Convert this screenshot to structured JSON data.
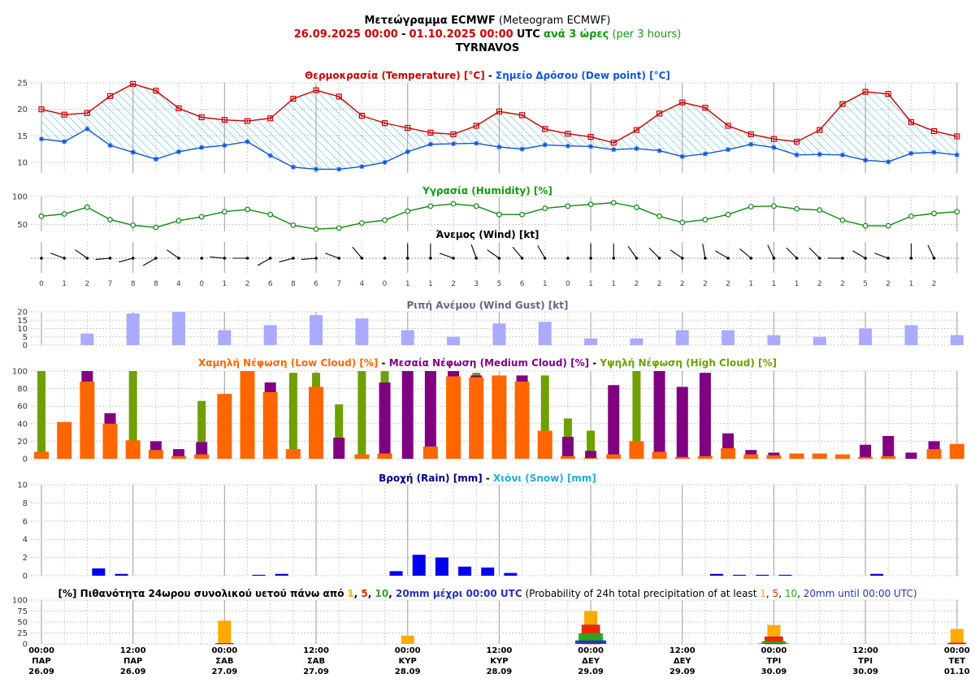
{
  "header": {
    "title_gr": "Μετεώγραμμα ECMWF",
    "title_en": "(Meteogram ECMWF)",
    "date_from": "26.09.2025 00:00",
    "dash": "-",
    "date_to": "01.10.2025 00:00",
    "utc": "UTC",
    "every_gr": "ανά 3 ώρες",
    "every_en": "(per 3 hours)",
    "location": "TYRNAVOS"
  },
  "titles": {
    "temp_gr": "Θερμοκρασία (Temperature) [°C]",
    "temp_sep": " - ",
    "dew_gr": "Σημείο Δρόσου (Dew point) [°C]",
    "humidity": "Υγρασία (Humidity) [%]",
    "wind": "Άνεμος (Wind) [kt]",
    "gust": "Ριπή Ανέμου (Wind Gust) [kt]",
    "low": "Χαμηλή Νέφωση (Low Cloud) [%]",
    "sep": " - ",
    "medium": "Μεσαία Νέφωση (Medium Cloud) [%]",
    "high": "Υψηλή Νέφωση (High Cloud) [%]",
    "rain": "Βροχή (Rain) [mm]",
    "snow": "Χιόνι (Snow) [mm]",
    "prob_a": "[%] Πιθανότητα 24ωρου συνολικού υετού πάνω από",
    "prob_b": "mm μέχρι 00:00 UTC",
    "prob_c": "(Probability of 24h total precipitation of at least",
    "prob_d": "mm until 00:00 UTC)",
    "t1": "1",
    "t5": "5",
    "t10": "10",
    "t20": "20",
    "comma": ", "
  },
  "colors": {
    "temperature": "#cc0000",
    "dewpoint": "#1155dd",
    "hatch": "#22aacc",
    "humidity": "#118811",
    "gust": "#aaaaff",
    "low_cloud": "#ff6600",
    "medium_cloud": "#7f0080",
    "high_cloud": "#6fa000",
    "rain": "#0000ee",
    "snow": "#22aadd",
    "prob_1": "#ffaa00",
    "prob_5": "#ee2200",
    "prob_10": "#22aa22",
    "prob_20": "#2233bb"
  },
  "x_axis": {
    "ticks": [
      {
        "time": "00:00",
        "day": "ΠΑΡ",
        "date": "26.09"
      },
      {
        "time": "12:00",
        "day": "ΠΑΡ",
        "date": "26.09"
      },
      {
        "time": "00:00",
        "day": "ΣΑΒ",
        "date": "27.09"
      },
      {
        "time": "12:00",
        "day": "ΣΑΒ",
        "date": "27.09"
      },
      {
        "time": "00:00",
        "day": "ΚΥΡ",
        "date": "28.09"
      },
      {
        "time": "12:00",
        "day": "ΚΥΡ",
        "date": "28.09"
      },
      {
        "time": "00:00",
        "day": "ΔΕΥ",
        "date": "29.09"
      },
      {
        "time": "12:00",
        "day": "ΔΕΥ",
        "date": "29.09"
      },
      {
        "time": "00:00",
        "day": "ΤΡΙ",
        "date": "30.09"
      },
      {
        "time": "12:00",
        "day": "ΤΡΙ",
        "date": "30.09"
      },
      {
        "time": "00:00",
        "day": "ΤΕΤ",
        "date": "01.10"
      }
    ]
  },
  "chart_data": [
    {
      "type": "line",
      "title": "Θερμοκρασία (Temperature) [°C] - Σημείο Δρόσου (Dew point) [°C]",
      "x_step_hours": 3,
      "ylim": [
        8,
        25
      ],
      "yticks": [
        10,
        15,
        20,
        25
      ],
      "series": [
        {
          "name": "Temperature",
          "values": [
            20.0,
            19.0,
            19.3,
            22.5,
            24.8,
            23.5,
            20.2,
            18.5,
            18.0,
            17.8,
            18.3,
            22.0,
            23.6,
            22.4,
            18.8,
            17.4,
            16.5,
            15.6,
            15.3,
            16.9,
            19.6,
            18.9,
            16.3,
            15.4,
            14.8,
            13.7,
            16.1,
            19.2,
            21.3,
            20.3,
            16.9,
            15.3,
            14.4,
            13.9,
            16.1,
            21.0,
            23.3,
            22.9,
            17.6,
            15.9,
            14.9
          ]
        },
        {
          "name": "Dew point",
          "values": [
            14.4,
            13.9,
            16.3,
            13.2,
            11.9,
            10.6,
            12.0,
            12.8,
            13.2,
            13.9,
            11.3,
            9.1,
            8.7,
            8.7,
            9.2,
            10.0,
            12.0,
            13.4,
            13.5,
            13.6,
            12.9,
            12.5,
            13.3,
            13.1,
            13.0,
            12.4,
            12.6,
            12.2,
            11.1,
            11.6,
            12.4,
            13.4,
            12.8,
            11.4,
            11.5,
            11.4,
            10.4,
            10.1,
            11.7,
            11.9,
            11.4
          ]
        }
      ]
    },
    {
      "type": "line",
      "title": "Υγρασία (Humidity) [%]",
      "ylim": [
        38,
        100
      ],
      "yticks": [
        50,
        100
      ],
      "series": [
        {
          "name": "Humidity",
          "values": [
            65,
            69,
            81,
            59,
            49,
            45,
            57,
            64,
            73,
            77,
            68,
            49,
            42,
            44,
            53,
            58,
            74,
            83,
            87,
            83,
            68,
            68,
            79,
            83,
            86,
            89,
            81,
            65,
            54,
            59,
            68,
            82,
            83,
            78,
            76,
            58,
            48,
            48,
            65,
            70,
            73
          ]
        }
      ]
    },
    {
      "type": "wind",
      "title": "Άνεμος (Wind) [kt]",
      "speed_kt": [
        0,
        1,
        2,
        7,
        8,
        8,
        4,
        0,
        1,
        2,
        6,
        8,
        6,
        7,
        4,
        0,
        1,
        1,
        2,
        3,
        5,
        6,
        1,
        0,
        1,
        1,
        2,
        2,
        2,
        2,
        2,
        1,
        1,
        1,
        2,
        2,
        5,
        2,
        1,
        2
      ],
      "direction_deg": [
        0,
        290,
        305,
        265,
        255,
        240,
        305,
        0,
        275,
        270,
        240,
        255,
        265,
        290,
        320,
        0,
        0,
        0,
        290,
        340,
        305,
        320,
        330,
        0,
        0,
        0,
        325,
        315,
        305,
        350,
        300,
        310,
        335,
        315,
        315,
        270,
        300,
        290,
        0,
        335
      ]
    },
    {
      "type": "bar",
      "title": "Ριπή Ανέμου (Wind Gust) [kt]",
      "ylim": [
        0,
        20
      ],
      "yticks": [
        0,
        5,
        10,
        15,
        20
      ],
      "values": [
        0,
        0,
        7,
        0,
        19,
        0,
        20,
        0,
        9,
        0,
        12,
        0,
        18,
        0,
        16,
        0,
        9,
        0,
        5,
        0,
        13,
        0,
        14,
        0,
        4,
        0,
        4,
        0,
        9,
        0,
        9,
        0,
        6,
        0,
        5,
        0,
        10,
        0,
        12,
        0,
        6
      ]
    },
    {
      "type": "bar",
      "title": "Χαμηλή Νέφωση (Low Cloud) [%] - Μεσαία Νέφωση (Medium Cloud) [%] - Υψηλή Νέφωση (High Cloud) [%]",
      "ylim": [
        0,
        100
      ],
      "yticks": [
        0,
        20,
        40,
        60,
        80,
        100
      ],
      "series": [
        {
          "name": "Low Cloud",
          "values": [
            8,
            42,
            88,
            40,
            21,
            10,
            3,
            5,
            74,
            100,
            76,
            11,
            82,
            0,
            5,
            6,
            0,
            14,
            94,
            93,
            95,
            88,
            32,
            3,
            1,
            5,
            20,
            8,
            2,
            3,
            12,
            5,
            4,
            6,
            6,
            5,
            2,
            3,
            0,
            11,
            17
          ]
        },
        {
          "name": "Medium Cloud",
          "values": [
            0,
            0,
            100,
            52,
            0,
            20,
            11,
            19,
            0,
            0,
            87,
            0,
            0,
            24,
            0,
            87,
            100,
            100,
            100,
            95,
            0,
            95,
            0,
            25,
            9,
            84,
            0,
            100,
            82,
            98,
            29,
            10,
            7,
            0,
            0,
            0,
            16,
            26,
            7,
            20,
            0
          ]
        },
        {
          "name": "High Cloud",
          "values": [
            100,
            0,
            0,
            0,
            100,
            0,
            0,
            66,
            0,
            0,
            0,
            98,
            98,
            62,
            100,
            100,
            0,
            0,
            0,
            98,
            0,
            0,
            95,
            46,
            32,
            0,
            100,
            0,
            0,
            0,
            0,
            0,
            0,
            0,
            0,
            0,
            0,
            0,
            0,
            0,
            0
          ]
        }
      ]
    },
    {
      "type": "bar",
      "title": "Βροχή (Rain) [mm] - Χιόνι (Snow) [mm]",
      "ylim": [
        0,
        10
      ],
      "yticks": [
        0,
        2,
        4,
        6,
        8,
        10
      ],
      "series": [
        {
          "name": "Rain",
          "values": [
            0,
            0,
            0.8,
            0.2,
            0,
            0,
            0,
            0,
            0,
            0.1,
            0.2,
            0,
            0,
            0,
            0,
            0.5,
            2.3,
            2.0,
            1.0,
            0.9,
            0.3,
            0,
            0,
            0,
            0,
            0,
            0,
            0,
            0,
            0.2,
            0.1,
            0.1,
            0.1,
            0,
            0,
            0,
            0.2,
            0,
            0,
            0
          ]
        },
        {
          "name": "Snow",
          "values": [
            0,
            0,
            0,
            0,
            0,
            0,
            0,
            0,
            0,
            0,
            0,
            0,
            0,
            0,
            0,
            0,
            0,
            0,
            0,
            0,
            0,
            0,
            0,
            0,
            0,
            0,
            0,
            0,
            0,
            0,
            0,
            0,
            0,
            0,
            0,
            0,
            0,
            0,
            0,
            0
          ]
        }
      ]
    },
    {
      "type": "bar",
      "title": "[%] Πιθανότητα 24ωρου συνολικού υετού πάνω από 1, 5, 10, 20mm μέχρι 00:00 UTC",
      "ylim": [
        0,
        100
      ],
      "yticks": [
        0,
        25,
        50,
        75,
        100
      ],
      "categories": [
        "27.09",
        "28.09",
        "29.09",
        "30.09",
        "01.10"
      ],
      "series": [
        {
          "name": "1",
          "values": [
            53,
            19,
            75,
            43,
            34
          ]
        },
        {
          "name": "5",
          "values": [
            1,
            0,
            43,
            16,
            2
          ]
        },
        {
          "name": "10",
          "values": [
            0,
            0,
            24,
            6,
            0
          ]
        },
        {
          "name": "20",
          "values": [
            0,
            0,
            8,
            1,
            0
          ]
        }
      ]
    }
  ]
}
